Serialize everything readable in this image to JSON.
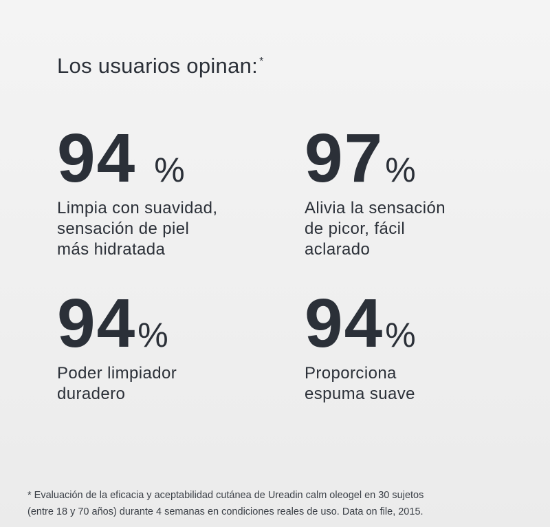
{
  "title": "Los usuarios opinan:",
  "title_mark": "*",
  "stats": [
    {
      "value": 94,
      "unit": "%",
      "lines": [
        "Limpia con suavidad,",
        "sensación de piel",
        "más hidratada"
      ]
    },
    {
      "value": 97,
      "unit": "%",
      "lines": [
        "Alivia la sensación",
        "de picor, fácil",
        "aclarado"
      ]
    },
    {
      "value": 94,
      "unit": "%",
      "lines": [
        "Poder limpiador",
        "duradero"
      ]
    },
    {
      "value": 94,
      "unit": "%",
      "lines": [
        "Proporciona",
        "espuma suave"
      ]
    }
  ],
  "footnote": [
    "* Evaluación de la eficacia y aceptabilidad cutánea de Ureadin calm oleogel en 30 sujetos",
    "(entre 18 y 70 años) durante 4 semanas en condiciones reales de uso. Data on file, 2015."
  ]
}
